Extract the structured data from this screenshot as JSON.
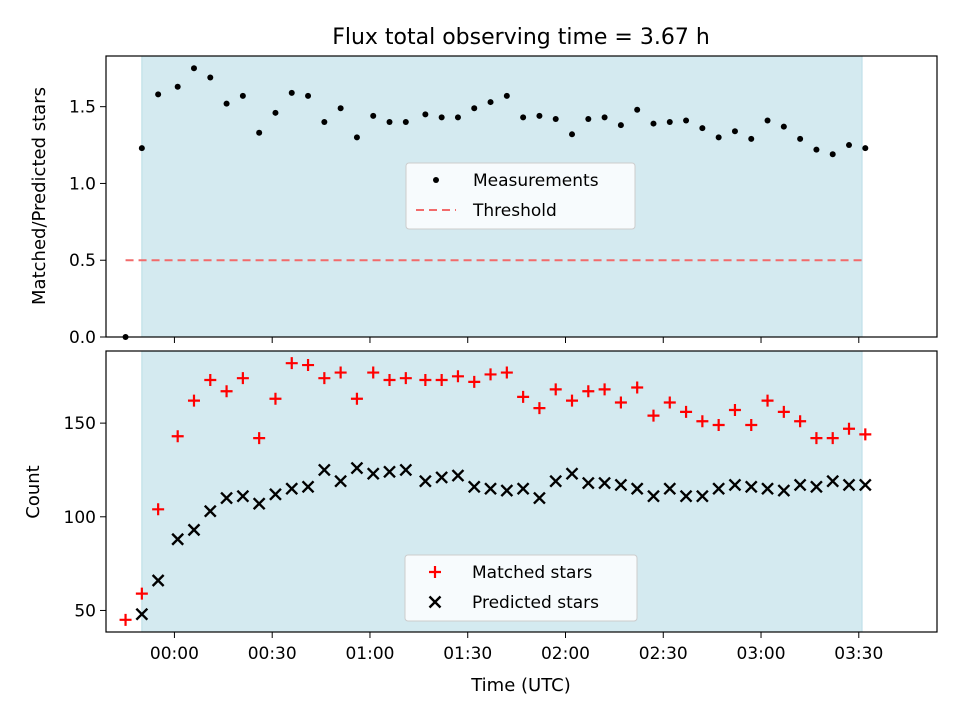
{
  "chart_data": [
    {
      "type": "scatter",
      "title": "Flux total observing time = 3.67 h",
      "xlabel": "",
      "ylabel": "Matched/Predicted stars",
      "xlim": [
        "23:39",
        "03:54"
      ],
      "ylim": [
        0,
        1.83
      ],
      "yticks": [
        0.0,
        0.5,
        1.0,
        1.5
      ],
      "ytick_labels": [
        "0.0",
        "0.5",
        "1.0",
        "1.5"
      ],
      "observing_window": [
        "23:50",
        "03:31"
      ],
      "legend": {
        "placement": "center",
        "entries": [
          "Measurements",
          "Threshold"
        ]
      },
      "threshold": {
        "name": "Threshold",
        "value": 0.5,
        "x": [
          "23:45",
          "03:31"
        ],
        "color": "#f26b6b"
      },
      "series": [
        {
          "name": "Measurements",
          "marker": "dot",
          "color": "#000000",
          "x": [
            "23:45",
            "23:50",
            "23:55",
            "00:01",
            "00:06",
            "00:11",
            "00:16",
            "00:21",
            "00:26",
            "00:31",
            "00:36",
            "00:41",
            "00:46",
            "00:51",
            "00:56",
            "01:01",
            "01:06",
            "01:11",
            "01:17",
            "01:22",
            "01:27",
            "01:32",
            "01:37",
            "01:42",
            "01:47",
            "01:52",
            "01:57",
            "02:02",
            "02:07",
            "02:12",
            "02:17",
            "02:22",
            "02:27",
            "02:32",
            "02:37",
            "02:42",
            "02:47",
            "02:52",
            "02:57",
            "03:02",
            "03:07",
            "03:12",
            "03:17",
            "03:22",
            "03:27",
            "03:32"
          ],
          "y": [
            0.0,
            1.23,
            1.58,
            1.63,
            1.75,
            1.69,
            1.52,
            1.57,
            1.33,
            1.46,
            1.59,
            1.57,
            1.4,
            1.49,
            1.3,
            1.44,
            1.4,
            1.4,
            1.45,
            1.43,
            1.43,
            1.49,
            1.53,
            1.57,
            1.43,
            1.44,
            1.42,
            1.32,
            1.42,
            1.43,
            1.38,
            1.48,
            1.39,
            1.4,
            1.41,
            1.36,
            1.3,
            1.34,
            1.29,
            1.41,
            1.37,
            1.29,
            1.22,
            1.19,
            1.25,
            1.23
          ]
        }
      ]
    },
    {
      "type": "scatter",
      "xlabel": "Time (UTC)",
      "ylabel": "Count",
      "xlim": [
        "23:39",
        "03:54"
      ],
      "ylim": [
        38.5,
        188.5
      ],
      "yticks": [
        50,
        100,
        150
      ],
      "ytick_labels": [
        "50",
        "100",
        "150"
      ],
      "xticks": [
        "00:00",
        "00:30",
        "01:00",
        "01:30",
        "02:00",
        "02:30",
        "03:00",
        "03:30"
      ],
      "observing_window": [
        "23:50",
        "03:31"
      ],
      "legend": {
        "placement": "lower center",
        "entries": [
          "Matched stars",
          "Predicted stars"
        ]
      },
      "series": [
        {
          "name": "Matched stars",
          "marker": "plus",
          "color": "#ff0000",
          "x": [
            "23:45",
            "23:50",
            "23:55",
            "00:01",
            "00:06",
            "00:11",
            "00:16",
            "00:21",
            "00:26",
            "00:31",
            "00:36",
            "00:41",
            "00:46",
            "00:51",
            "00:56",
            "01:01",
            "01:06",
            "01:11",
            "01:17",
            "01:22",
            "01:27",
            "01:32",
            "01:37",
            "01:42",
            "01:47",
            "01:52",
            "01:57",
            "02:02",
            "02:07",
            "02:12",
            "02:17",
            "02:22",
            "02:27",
            "02:32",
            "02:37",
            "02:42",
            "02:47",
            "02:52",
            "02:57",
            "03:02",
            "03:07",
            "03:12",
            "03:17",
            "03:22",
            "03:27",
            "03:32"
          ],
          "y": [
            45,
            59,
            104,
            143,
            162,
            173,
            167,
            174,
            142,
            163,
            182,
            181,
            174,
            177,
            163,
            177,
            173,
            174,
            173,
            173,
            175,
            172,
            176,
            177,
            164,
            158,
            168,
            162,
            167,
            168,
            161,
            169,
            154,
            161,
            156,
            151,
            149,
            157,
            149,
            162,
            156,
            151,
            142,
            142,
            147,
            144
          ]
        },
        {
          "name": "Predicted stars",
          "marker": "x",
          "color": "#000000",
          "x": [
            "23:50",
            "23:55",
            "00:01",
            "00:06",
            "00:11",
            "00:16",
            "00:21",
            "00:26",
            "00:31",
            "00:36",
            "00:41",
            "00:46",
            "00:51",
            "00:56",
            "01:01",
            "01:06",
            "01:11",
            "01:17",
            "01:22",
            "01:27",
            "01:32",
            "01:37",
            "01:42",
            "01:47",
            "01:52",
            "01:57",
            "02:02",
            "02:07",
            "02:12",
            "02:17",
            "02:22",
            "02:27",
            "02:32",
            "02:37",
            "02:42",
            "02:47",
            "02:52",
            "02:57",
            "03:02",
            "03:07",
            "03:12",
            "03:17",
            "03:22",
            "03:27",
            "03:32"
          ],
          "y": [
            48,
            66,
            88,
            93,
            103,
            110,
            111,
            107,
            112,
            115,
            116,
            125,
            119,
            126,
            123,
            124,
            125,
            119,
            121,
            122,
            116,
            115,
            114,
            115,
            110,
            119,
            123,
            118,
            118,
            117,
            115,
            111,
            115,
            111,
            111,
            115,
            117,
            116,
            115,
            114,
            117,
            116,
            119,
            117,
            117
          ]
        }
      ]
    }
  ],
  "colors": {
    "observing_window_fill": "#d4eaf0",
    "matched": "#ff0000",
    "predicted": "#000000",
    "measurement": "#000000",
    "threshold": "#f26b6b"
  }
}
